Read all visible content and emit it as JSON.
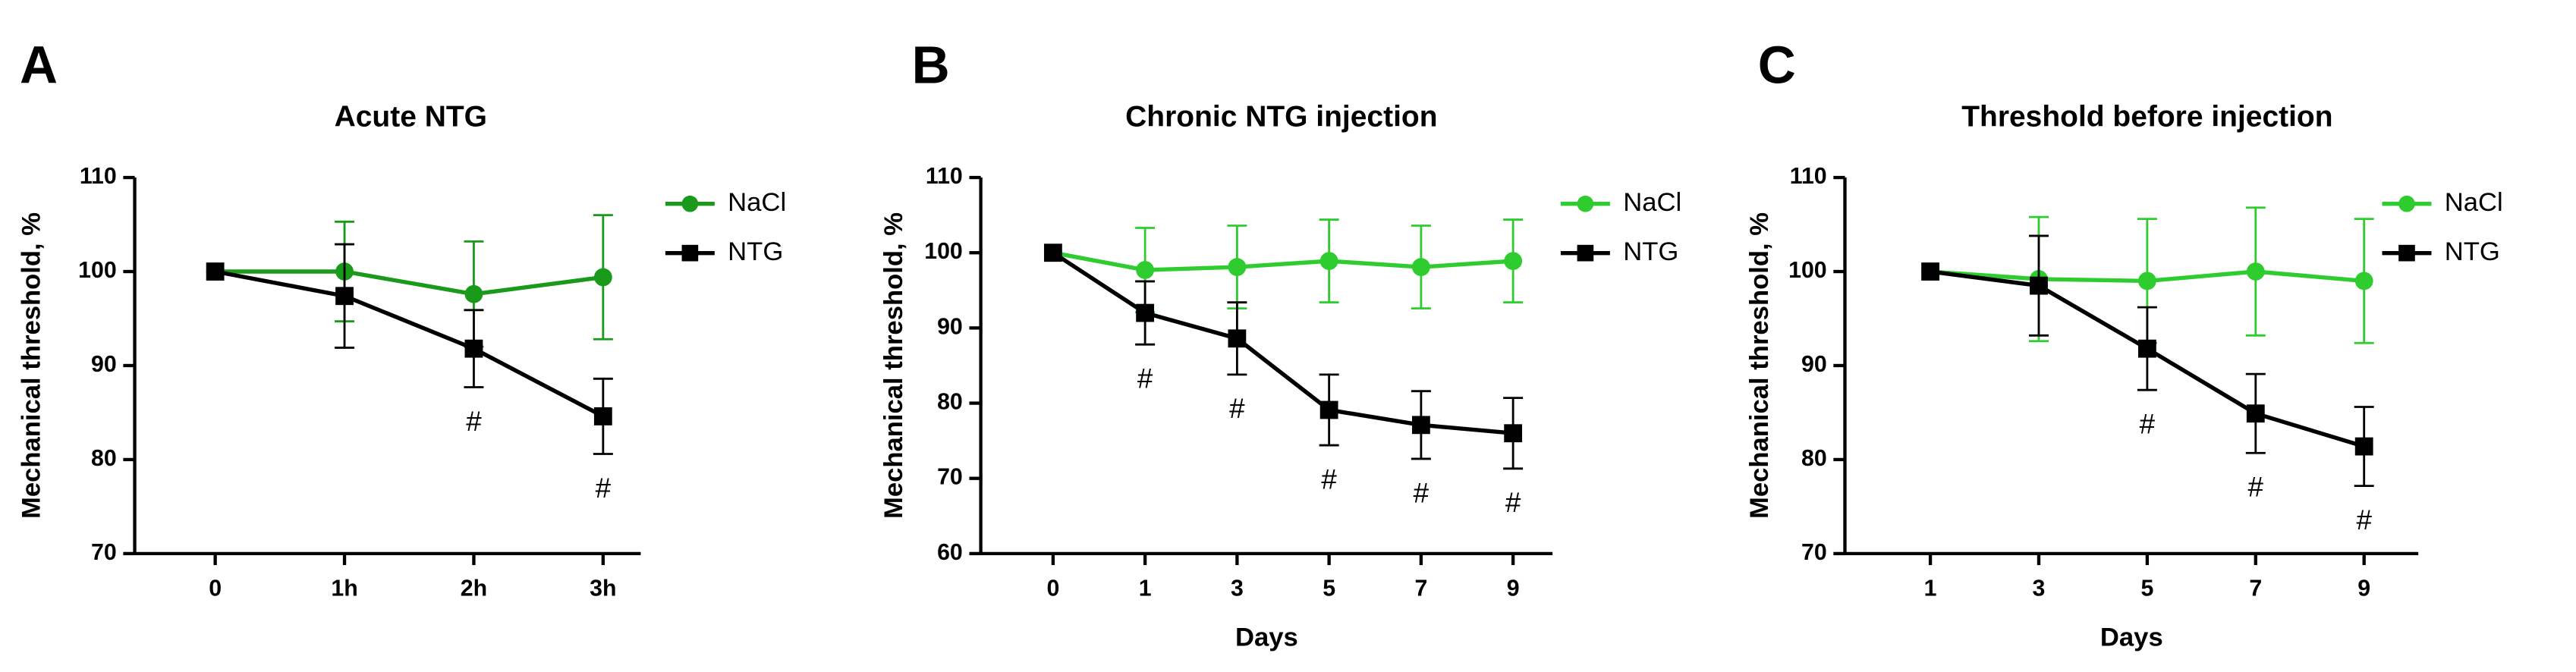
{
  "chart_data": [
    {
      "type": "line",
      "label": "A",
      "title": "Acute NTG",
      "ylabel": "Mechanical threshold, %",
      "categories": [
        "0",
        "1h",
        "2h",
        "3h"
      ],
      "ylim": [
        70,
        110
      ],
      "yticks": [
        70,
        80,
        90,
        100,
        110
      ],
      "series": [
        {
          "name": "NaCl",
          "color": "#1a9a1a",
          "marker": "circle",
          "values": [
            100,
            100,
            97.6,
            99.4
          ],
          "errors": [
            0,
            5.3,
            5.6,
            6.6
          ]
        },
        {
          "name": "NTG",
          "color": "#000000",
          "marker": "square",
          "values": [
            100,
            97.4,
            91.8,
            84.6
          ],
          "errors": [
            0,
            5.5,
            4.1,
            4.0
          ],
          "significance": [
            null,
            null,
            "#",
            "#"
          ]
        }
      ]
    },
    {
      "type": "line",
      "label": "B",
      "title": "Chronic NTG injection",
      "ylabel": "Mechanical threshold, %",
      "xlabel": "Days",
      "categories": [
        "0",
        "1",
        "3",
        "5",
        "7",
        "9"
      ],
      "ylim": [
        60,
        110
      ],
      "yticks": [
        60,
        70,
        80,
        90,
        100,
        110
      ],
      "series": [
        {
          "name": "NaCl",
          "color": "#2ecc2e",
          "marker": "circle",
          "values": [
            100,
            97.7,
            98.1,
            98.9,
            98.1,
            98.9
          ],
          "errors": [
            0,
            5.6,
            5.5,
            5.5,
            5.5,
            5.5
          ]
        },
        {
          "name": "NTG",
          "color": "#000000",
          "marker": "square",
          "values": [
            100,
            92,
            88.6,
            79.1,
            77.1,
            76
          ],
          "errors": [
            0,
            4.2,
            4.8,
            4.7,
            4.5,
            4.7
          ],
          "significance": [
            null,
            "#",
            "#",
            "#",
            "#",
            "#"
          ]
        }
      ]
    },
    {
      "type": "line",
      "label": "C",
      "title": "Threshold before injection",
      "ylabel": "Mechanical threshold, %",
      "xlabel": "Days",
      "categories": [
        "1",
        "3",
        "5",
        "7",
        "9"
      ],
      "ylim": [
        70,
        110
      ],
      "yticks": [
        70,
        80,
        90,
        100,
        110
      ],
      "series": [
        {
          "name": "NaCl",
          "color": "#2ecc2e",
          "marker": "circle",
          "values": [
            100,
            99.2,
            99,
            100,
            99
          ],
          "errors": [
            0,
            6.6,
            6.6,
            6.8,
            6.6
          ]
        },
        {
          "name": "NTG",
          "color": "#000000",
          "marker": "square",
          "values": [
            100,
            98.5,
            91.8,
            84.9,
            81.4
          ],
          "errors": [
            0,
            5.3,
            4.4,
            4.2,
            4.2
          ],
          "significance": [
            null,
            null,
            "#",
            "#",
            "#"
          ]
        }
      ]
    }
  ]
}
